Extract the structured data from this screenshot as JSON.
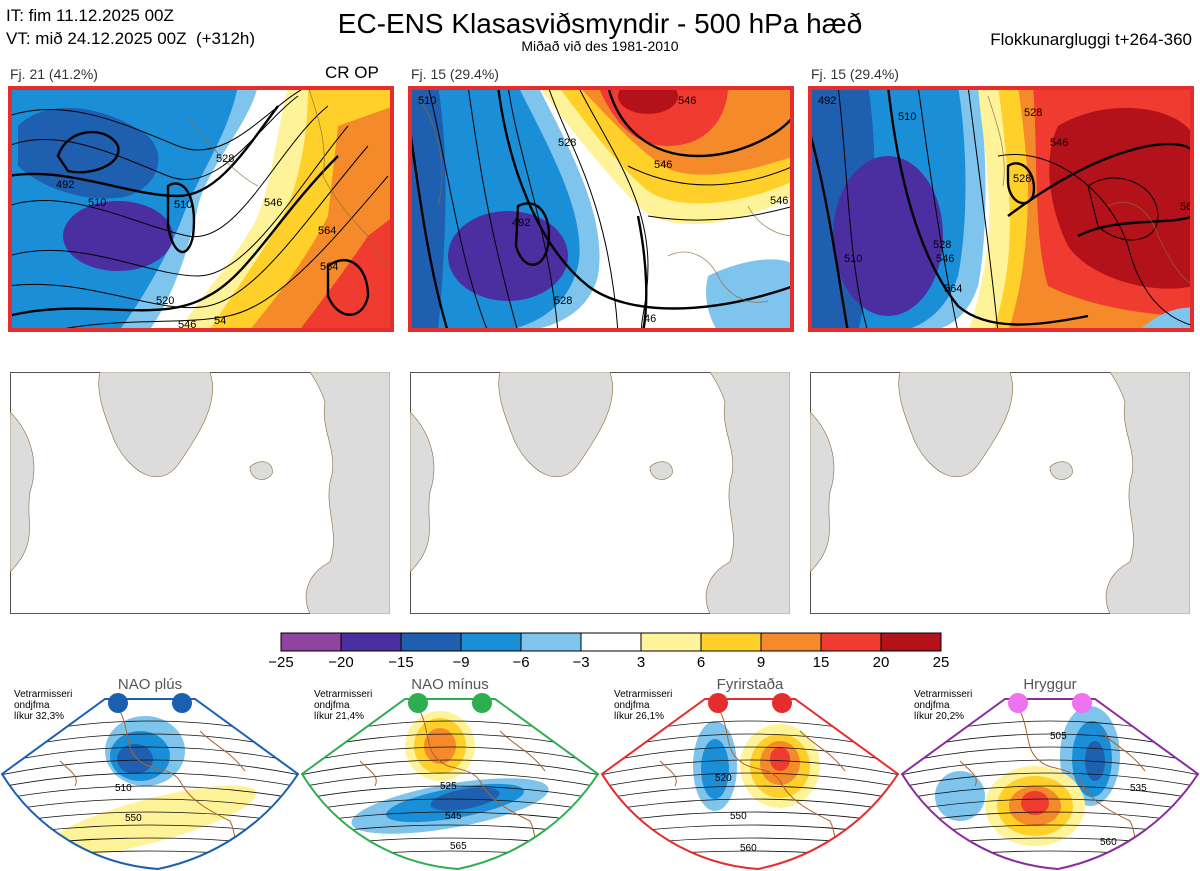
{
  "header": {
    "it_line": "IT: fim 11.12.2025 00Z",
    "vt_line": "VT: mið 24.12.2025 00Z  (+312h)",
    "title": "EC-ENS Klasasviðsmyndir - 500 hPa hæð",
    "subtitle": "Miðað við des 1981-2010",
    "window": "Flokkunargluggi t+264-360"
  },
  "panels": [
    {
      "label": "Fj. 21 (41.2%)",
      "tag": "CR OP",
      "contours": [
        "492",
        "510",
        "510",
        "528",
        "546",
        "520",
        "564",
        "564",
        "546",
        "54"
      ]
    },
    {
      "label": "Fj. 15 (29.4%)",
      "tag": "",
      "contours": [
        "510",
        "528",
        "546",
        "546",
        "492",
        "528",
        "46",
        "546"
      ]
    },
    {
      "label": "Fj. 15 (29.4%)",
      "tag": "",
      "contours": [
        "492",
        "510",
        "528",
        "528",
        "546",
        "510",
        "564",
        "528",
        "546",
        "56"
      ]
    }
  ],
  "colorbar": {
    "ticks": [
      "−25",
      "−20",
      "−15",
      "−9",
      "−6",
      "−3",
      "3",
      "6",
      "9",
      "15",
      "20",
      "25"
    ],
    "colors": [
      "#8e44a0",
      "#4b2fa0",
      "#1f5fb0",
      "#1a8fd8",
      "#7ec4ec",
      "#ffffff",
      "#fff39a",
      "#ffd02a",
      "#f58a2a",
      "#ef3b30",
      "#b3121a"
    ]
  },
  "regimes": [
    {
      "name": "NAO plús",
      "note": "Vetrarmisseri\nondjfma\nlíkur 32,3%",
      "color": "#1a5fb0",
      "dot": "#1a5fb0",
      "contours": [
        "510",
        "550"
      ]
    },
    {
      "name": "NAO mínus",
      "note": "Vetrarmisseri\nondjfma\nlíkur 21,4%",
      "color": "#2fae4f",
      "dot": "#2fae4f",
      "contours": [
        "525",
        "545",
        "565"
      ]
    },
    {
      "name": "Fyrirstaða",
      "note": "Vetrarmisseri\nondjfma\nlíkur 26,1%",
      "color": "#e52d2d",
      "dot": "#e52d2d",
      "contours": [
        "520",
        "550",
        "560"
      ]
    },
    {
      "name": "Hryggur",
      "note": "Vetrarmisseri\nondjfma\nlíkur 20,2%",
      "color": "#8a2c9c",
      "dot": "#ee72ee",
      "contours": [
        "505",
        "535",
        "560"
      ]
    }
  ]
}
